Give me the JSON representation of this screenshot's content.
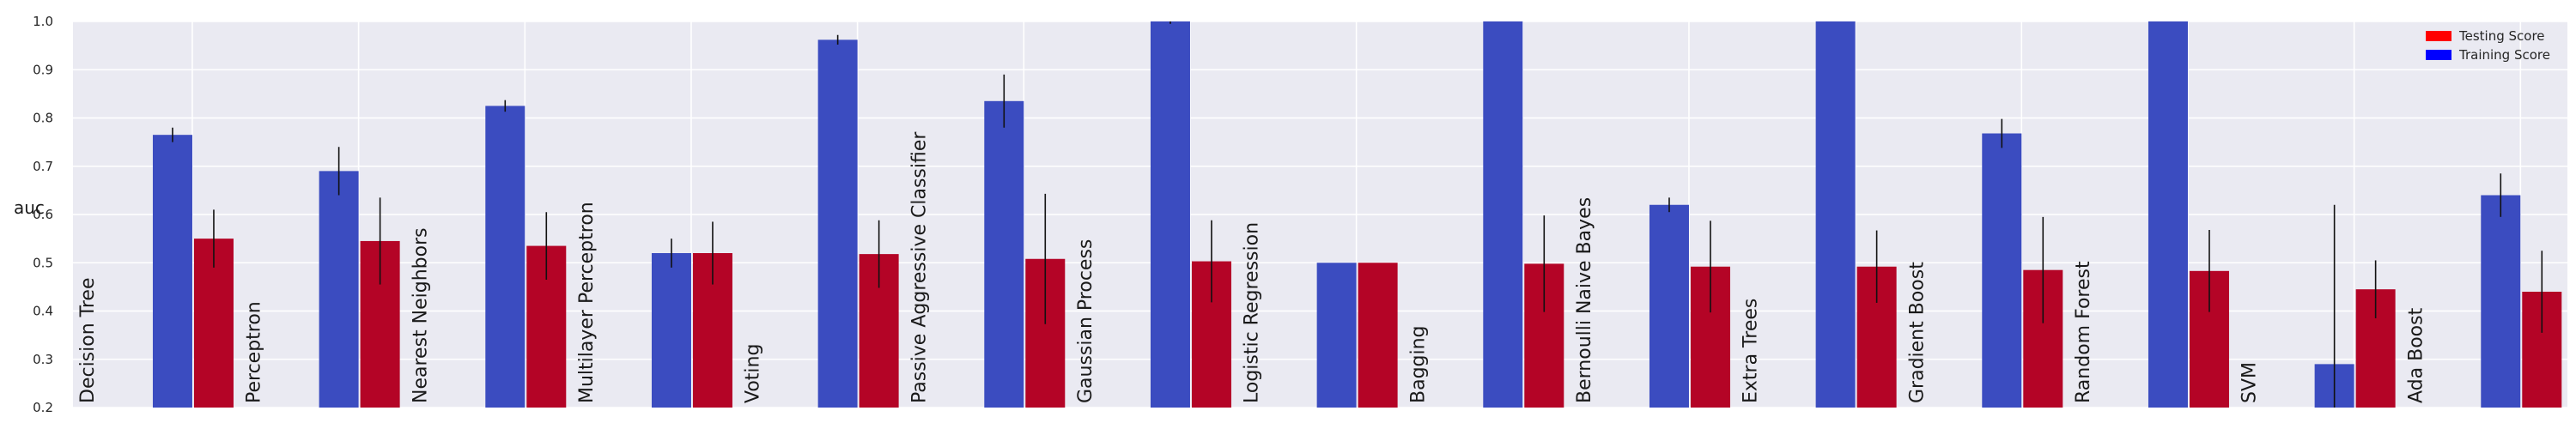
{
  "chart_data": {
    "type": "bar",
    "ylabel": "auc",
    "ylim": [
      0.2,
      1.0
    ],
    "yticks": [
      "0.2",
      "0.3",
      "0.4",
      "0.5",
      "0.6",
      "0.7",
      "0.8",
      "0.9",
      "1.0"
    ],
    "grid": true,
    "legend_position": "top-right",
    "categories": [
      "Decision Tree",
      "Perceptron",
      "Nearest Neighbors",
      "Multilayer Perceptron",
      "Voting",
      "Passive Aggressive Classifier",
      "Gaussian Process",
      "Logistic Regression",
      "Bagging",
      "Bernoulli Naive Bayes",
      "Extra Trees",
      "Gradient Boost",
      "Random Forest",
      "SVM",
      "Ada Boost"
    ],
    "series": [
      {
        "name": "Training Score",
        "color": "#3b4cc0",
        "values": [
          0.765,
          0.69,
          0.825,
          0.52,
          0.962,
          0.835,
          1.0,
          0.5,
          1.0,
          0.62,
          1.0,
          0.768,
          1.0,
          0.29,
          0.64
        ],
        "errors": [
          0.015,
          0.05,
          0.012,
          0.03,
          0.01,
          0.055,
          0.005,
          0.0,
          0.0,
          0.015,
          0.0,
          0.03,
          0.0,
          0.33,
          0.045
        ]
      },
      {
        "name": "Testing Score",
        "color": "#b40426",
        "values": [
          0.55,
          0.545,
          0.535,
          0.52,
          0.518,
          0.508,
          0.503,
          0.5,
          0.498,
          0.492,
          0.492,
          0.485,
          0.483,
          0.445,
          0.44
        ],
        "errors": [
          0.06,
          0.09,
          0.07,
          0.065,
          0.07,
          0.135,
          0.085,
          0.0,
          0.1,
          0.095,
          0.075,
          0.11,
          0.085,
          0.06,
          0.085
        ]
      }
    ]
  }
}
